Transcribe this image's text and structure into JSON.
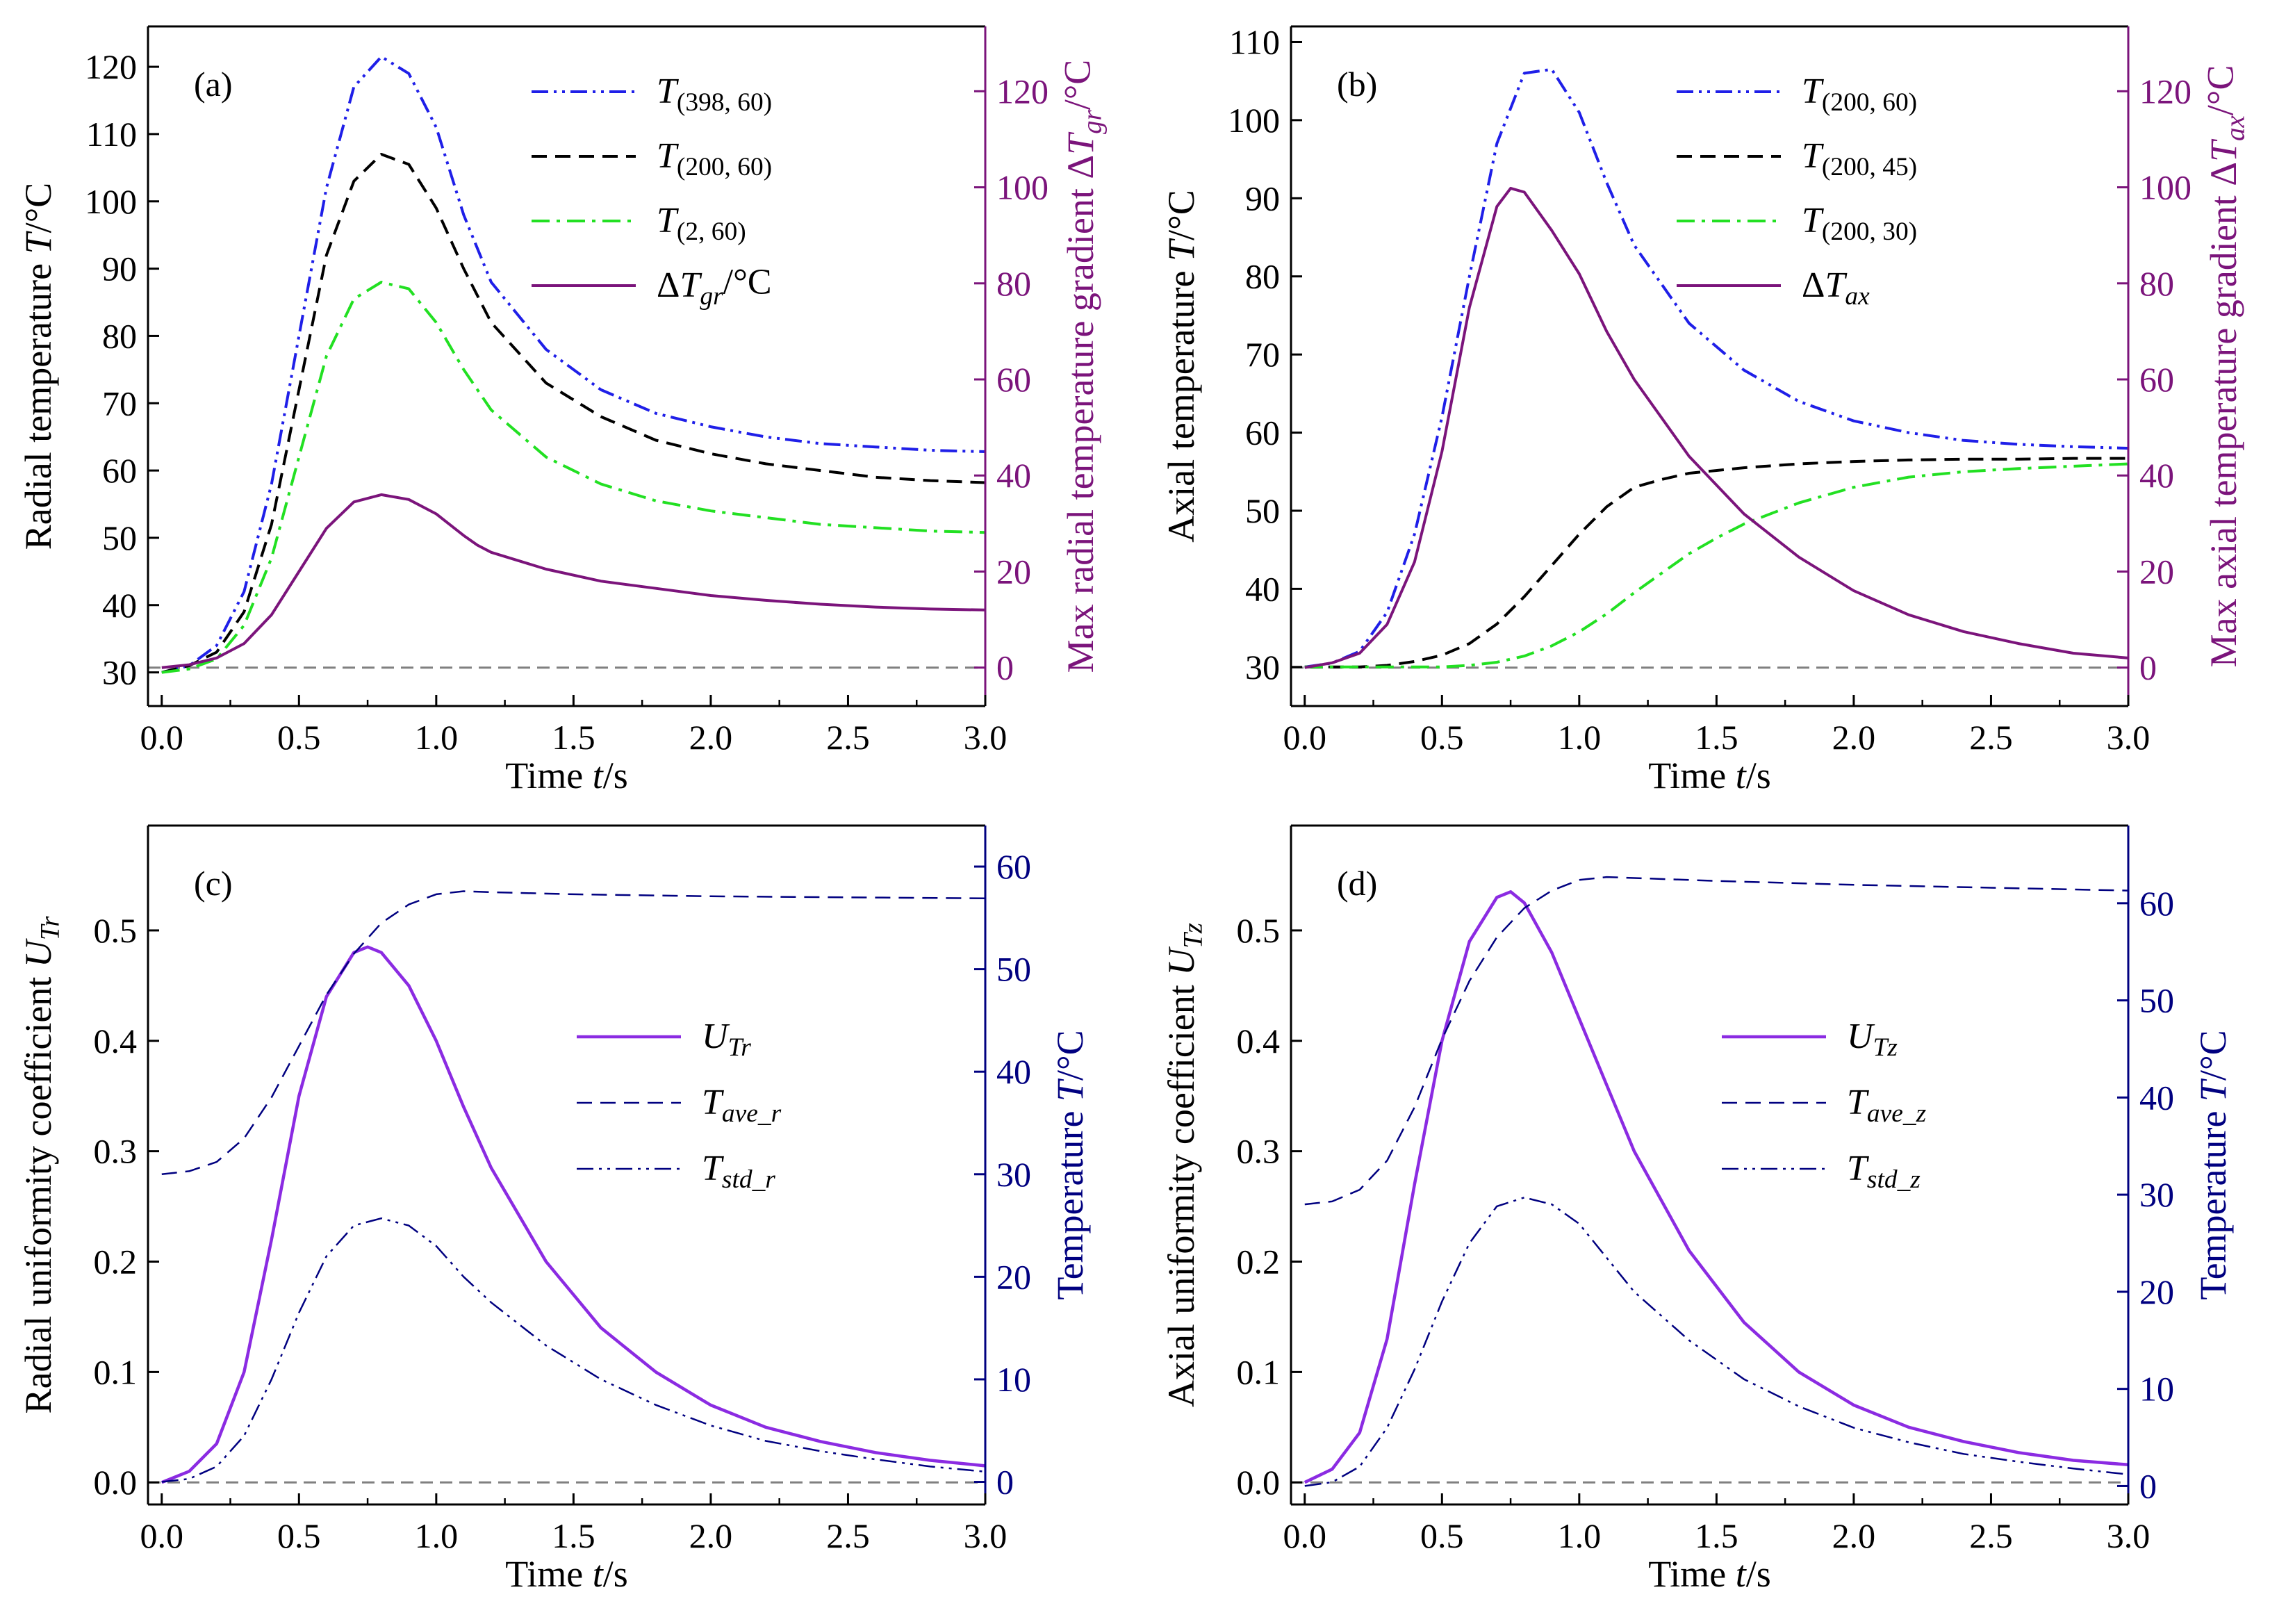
{
  "colors": {
    "blue": "#1F1FE8",
    "black": "#000000",
    "green": "#22E022",
    "purple": "#7B147B",
    "violet": "#8B2BE2",
    "navy": "#000080",
    "gray": "#808080"
  },
  "chart_data": [
    {
      "type": "line",
      "panel_label": "(a)",
      "xlabel": "Time t/s",
      "ylabel_left": "Radial temperature T/°C",
      "ylabel_right": "Max radial temperature gradient ΔTgr/°C",
      "xlim": [
        -0.05,
        3.0
      ],
      "ylim_left": [
        25,
        126
      ],
      "ylim_right": [
        -8,
        133.5
      ],
      "xticks": [
        0.0,
        0.5,
        1.0,
        1.5,
        2.0,
        2.5,
        3.0
      ],
      "xtick_labels": [
        "0.0",
        "0.5",
        "1.0",
        "1.5",
        "2.0",
        "2.5",
        "3.0"
      ],
      "yticks_left": [
        30,
        40,
        50,
        60,
        70,
        80,
        90,
        100,
        110,
        120
      ],
      "yticks_left_labels": [
        "30",
        "40",
        "50",
        "60",
        "70",
        "80",
        "90",
        "100",
        "110",
        "120"
      ],
      "yticks_right": [
        0,
        20,
        40,
        60,
        80,
        100,
        120
      ],
      "yticks_right_labels": [
        "0",
        "20",
        "40",
        "60",
        "80",
        "100",
        "120"
      ],
      "legend_position": "top-right",
      "baseline": {
        "axis": "right",
        "value": 0
      },
      "series": [
        {
          "name": "T(398, 60)",
          "axis": "left",
          "color": "blue",
          "dash": "dashdotdot",
          "x": [
            0,
            0.1,
            0.2,
            0.3,
            0.4,
            0.5,
            0.6,
            0.7,
            0.8,
            0.9,
            1.0,
            1.1,
            1.2,
            1.4,
            1.6,
            1.8,
            2.0,
            2.2,
            2.4,
            2.6,
            2.8,
            3.0
          ],
          "y": [
            30,
            31,
            34,
            42,
            58,
            80,
            102,
            117,
            121.5,
            119,
            111,
            98,
            88,
            78,
            72,
            68.5,
            66.5,
            65,
            64,
            63.5,
            63,
            62.8
          ]
        },
        {
          "name": "T(200, 60)",
          "axis": "left",
          "color": "black",
          "dash": "dash",
          "x": [
            0,
            0.1,
            0.2,
            0.3,
            0.4,
            0.5,
            0.6,
            0.7,
            0.8,
            0.9,
            1.0,
            1.1,
            1.2,
            1.4,
            1.6,
            1.8,
            2.0,
            2.2,
            2.4,
            2.6,
            2.8,
            3.0
          ],
          "y": [
            30,
            31,
            33,
            39,
            52,
            72,
            92,
            103,
            107,
            105.5,
            99,
            90,
            82,
            73,
            68,
            64.5,
            62.5,
            61,
            60,
            59,
            58.5,
            58.2
          ]
        },
        {
          "name": "T(2, 60)",
          "axis": "left",
          "color": "green",
          "dash": "dashdot",
          "x": [
            0,
            0.1,
            0.2,
            0.3,
            0.4,
            0.5,
            0.6,
            0.7,
            0.8,
            0.9,
            1.0,
            1.1,
            1.2,
            1.4,
            1.6,
            1.8,
            2.0,
            2.2,
            2.4,
            2.6,
            2.8,
            3.0
          ],
          "y": [
            30,
            30.5,
            32,
            37,
            47,
            62,
            77,
            85.5,
            88,
            87,
            82,
            75,
            69,
            62,
            58,
            55.5,
            54,
            53,
            52,
            51.5,
            51,
            50.8
          ]
        },
        {
          "name": "ΔTgr/°C",
          "axis": "right",
          "color": "purple",
          "dash": "solid",
          "x": [
            0,
            0.1,
            0.2,
            0.3,
            0.4,
            0.5,
            0.6,
            0.7,
            0.8,
            0.9,
            1.0,
            1.1,
            1.15,
            1.2,
            1.4,
            1.6,
            1.8,
            2.0,
            2.2,
            2.4,
            2.6,
            2.8,
            3.0
          ],
          "y": [
            0,
            0.6,
            2,
            5,
            11,
            20,
            29,
            34.5,
            36,
            35,
            32,
            27.5,
            25.5,
            24,
            20.5,
            18,
            16.5,
            15,
            14,
            13.2,
            12.6,
            12.2,
            12
          ]
        }
      ],
      "legend": [
        {
          "series": 0,
          "label": "T",
          "sub": "(398, 60)"
        },
        {
          "series": 1,
          "label": "T",
          "sub": "(200, 60)"
        },
        {
          "series": 2,
          "label": "T",
          "sub": "(2, 60)"
        },
        {
          "series": 3,
          "label": "ΔT",
          "sub": "gr",
          "suffix": "/°C"
        }
      ]
    },
    {
      "type": "line",
      "panel_label": "(b)",
      "xlabel": "Time t/s",
      "ylabel_left": "Axial temperature T/°C",
      "ylabel_right": "Max axial temperature gradient ΔTax/°C",
      "xlim": [
        -0.05,
        3.0
      ],
      "ylim_left": [
        25,
        112
      ],
      "ylim_right": [
        -8,
        133.5
      ],
      "xticks": [
        0.0,
        0.5,
        1.0,
        1.5,
        2.0,
        2.5,
        3.0
      ],
      "xtick_labels": [
        "0.0",
        "0.5",
        "1.0",
        "1.5",
        "2.0",
        "2.5",
        "3.0"
      ],
      "yticks_left": [
        30,
        40,
        50,
        60,
        70,
        80,
        90,
        100,
        110
      ],
      "yticks_left_labels": [
        "30",
        "40",
        "50",
        "60",
        "70",
        "80",
        "90",
        "100",
        "110"
      ],
      "yticks_right": [
        0,
        20,
        40,
        60,
        80,
        100,
        120
      ],
      "yticks_right_labels": [
        "0",
        "20",
        "40",
        "60",
        "80",
        "100",
        "120"
      ],
      "legend_position": "top-right",
      "baseline": {
        "axis": "right",
        "value": 0
      },
      "series": [
        {
          "name": "T(200, 60)",
          "axis": "left",
          "color": "blue",
          "dash": "dashdotdot",
          "x": [
            0,
            0.1,
            0.2,
            0.3,
            0.4,
            0.5,
            0.6,
            0.7,
            0.8,
            0.9,
            1.0,
            1.1,
            1.2,
            1.4,
            1.6,
            1.8,
            2.0,
            2.2,
            2.4,
            2.6,
            2.8,
            3.0
          ],
          "y": [
            30,
            30.5,
            32,
            37,
            47,
            62,
            80,
            97,
            106,
            106.5,
            101,
            92,
            84,
            74,
            68,
            64,
            61.5,
            60,
            59,
            58.5,
            58.2,
            58
          ]
        },
        {
          "name": "T(200, 45)",
          "axis": "left",
          "color": "black",
          "dash": "dash",
          "x": [
            0,
            0.2,
            0.3,
            0.4,
            0.5,
            0.6,
            0.7,
            0.8,
            0.9,
            1.0,
            1.1,
            1.2,
            1.3,
            1.4,
            1.6,
            1.8,
            2.0,
            2.2,
            2.4,
            2.6,
            2.8,
            3.0
          ],
          "y": [
            30,
            30,
            30.2,
            30.7,
            31.5,
            33,
            35.5,
            39,
            43,
            47,
            50.5,
            53,
            54,
            54.8,
            55.5,
            56,
            56.3,
            56.5,
            56.6,
            56.6,
            56.7,
            56.7
          ]
        },
        {
          "name": "T(200, 30)",
          "axis": "left",
          "color": "green",
          "dash": "dashdot",
          "x": [
            0,
            0.5,
            0.6,
            0.7,
            0.8,
            0.9,
            1.0,
            1.1,
            1.2,
            1.3,
            1.4,
            1.5,
            1.6,
            1.8,
            2.0,
            2.2,
            2.4,
            2.6,
            2.8,
            3.0
          ],
          "y": [
            30,
            30,
            30.2,
            30.6,
            31.4,
            32.7,
            34.5,
            36.8,
            39.5,
            42,
            44.5,
            46.5,
            48.3,
            51,
            53,
            54.3,
            55,
            55.4,
            55.7,
            56
          ]
        },
        {
          "name": "ΔTax",
          "axis": "right",
          "color": "purple",
          "dash": "solid",
          "x": [
            0,
            0.1,
            0.2,
            0.3,
            0.4,
            0.5,
            0.6,
            0.7,
            0.75,
            0.8,
            0.9,
            1.0,
            1.1,
            1.2,
            1.4,
            1.6,
            1.8,
            2.0,
            2.2,
            2.4,
            2.6,
            2.8,
            3.0
          ],
          "y": [
            0,
            1,
            3,
            9,
            22,
            45,
            75,
            96,
            99.8,
            99,
            91,
            82,
            70,
            60,
            44,
            32,
            23,
            16,
            11,
            7.5,
            5,
            3,
            2
          ]
        }
      ],
      "legend": [
        {
          "series": 0,
          "label": "T",
          "sub": "(200, 60)"
        },
        {
          "series": 1,
          "label": "T",
          "sub": "(200, 45)"
        },
        {
          "series": 2,
          "label": "T",
          "sub": "(200, 30)"
        },
        {
          "series": 3,
          "label": "ΔT",
          "sub": "ax",
          "suffix": ""
        }
      ]
    },
    {
      "type": "line",
      "panel_label": "(c)",
      "xlabel": "Time t/s",
      "ylabel_left": "Radial uniformity coefficient UTr",
      "ylabel_right": "Temperature T/°C",
      "xlim": [
        -0.05,
        3.0
      ],
      "ylim_left": [
        -0.02,
        0.595
      ],
      "ylim_right": [
        -2.2,
        64
      ],
      "xticks": [
        0.0,
        0.5,
        1.0,
        1.5,
        2.0,
        2.5,
        3.0
      ],
      "xtick_labels": [
        "0.0",
        "0.5",
        "1.0",
        "1.5",
        "2.0",
        "2.5",
        "3.0"
      ],
      "yticks_left": [
        0.0,
        0.1,
        0.2,
        0.3,
        0.4,
        0.5
      ],
      "yticks_left_labels": [
        "0.0",
        "0.1",
        "0.2",
        "0.3",
        "0.4",
        "0.5"
      ],
      "yticks_right": [
        0,
        10,
        20,
        30,
        40,
        50,
        60
      ],
      "yticks_right_labels": [
        "0",
        "10",
        "20",
        "30",
        "40",
        "50",
        "60"
      ],
      "legend_position": "right",
      "baseline": {
        "axis": "left",
        "value": 0
      },
      "series": [
        {
          "name": "UTr",
          "axis": "left",
          "color": "violet",
          "dash": "solid",
          "width": 4.5,
          "x": [
            0,
            0.1,
            0.2,
            0.3,
            0.4,
            0.5,
            0.6,
            0.7,
            0.75,
            0.8,
            0.9,
            1.0,
            1.1,
            1.2,
            1.4,
            1.6,
            1.8,
            2.0,
            2.2,
            2.4,
            2.6,
            2.8,
            3.0
          ],
          "y": [
            0,
            0.01,
            0.035,
            0.1,
            0.22,
            0.35,
            0.44,
            0.48,
            0.485,
            0.48,
            0.45,
            0.4,
            0.34,
            0.285,
            0.2,
            0.14,
            0.1,
            0.07,
            0.05,
            0.037,
            0.027,
            0.02,
            0.015
          ]
        },
        {
          "name": "Tave_r",
          "axis": "right",
          "color": "navy",
          "dash": "dash",
          "width": 2.5,
          "x": [
            0,
            0.1,
            0.2,
            0.3,
            0.4,
            0.5,
            0.6,
            0.7,
            0.8,
            0.9,
            1.0,
            1.1,
            1.2,
            1.5,
            2.0,
            2.5,
            3.0
          ],
          "y": [
            30,
            30.3,
            31.2,
            33.5,
            37.5,
            42.5,
            47.5,
            51.5,
            54.5,
            56.3,
            57.3,
            57.6,
            57.5,
            57.3,
            57.1,
            57,
            56.9
          ]
        },
        {
          "name": "Tstd_r",
          "axis": "right",
          "color": "navy",
          "dash": "dashdotdot",
          "width": 2.5,
          "x": [
            0,
            0.1,
            0.2,
            0.3,
            0.4,
            0.5,
            0.6,
            0.7,
            0.8,
            0.9,
            1.0,
            1.1,
            1.2,
            1.4,
            1.6,
            1.8,
            2.0,
            2.2,
            2.4,
            2.6,
            2.8,
            3.0
          ],
          "y": [
            0,
            0.3,
            1.5,
            4.5,
            10,
            16.5,
            22,
            25,
            25.7,
            25,
            23,
            20,
            17.5,
            13.3,
            10,
            7.5,
            5.5,
            4,
            3,
            2.2,
            1.5,
            1
          ]
        }
      ],
      "legend": [
        {
          "series": 0,
          "label": "U",
          "sub": "Tr"
        },
        {
          "series": 1,
          "label": "T",
          "sub": "ave_r"
        },
        {
          "series": 2,
          "label": "T",
          "sub": "std_r"
        }
      ]
    },
    {
      "type": "line",
      "panel_label": "(d)",
      "xlabel": "Time t/s",
      "ylabel_left": "Axial uniformity coefficient UTz",
      "ylabel_right": "Temperature T/°C",
      "xlim": [
        -0.05,
        3.0
      ],
      "ylim_left": [
        -0.02,
        0.595
      ],
      "ylim_right": [
        -1.9,
        68
      ],
      "xticks": [
        0.0,
        0.5,
        1.0,
        1.5,
        2.0,
        2.5,
        3.0
      ],
      "xtick_labels": [
        "0.0",
        "0.5",
        "1.0",
        "1.5",
        "2.0",
        "2.5",
        "3.0"
      ],
      "yticks_left": [
        0.0,
        0.1,
        0.2,
        0.3,
        0.4,
        0.5
      ],
      "yticks_left_labels": [
        "0.0",
        "0.1",
        "0.2",
        "0.3",
        "0.4",
        "0.5"
      ],
      "yticks_right": [
        0,
        10,
        20,
        30,
        40,
        50,
        60
      ],
      "yticks_right_labels": [
        "0",
        "10",
        "20",
        "30",
        "40",
        "50",
        "60"
      ],
      "legend_position": "right",
      "baseline": {
        "axis": "left",
        "value": 0
      },
      "series": [
        {
          "name": "UTz",
          "axis": "left",
          "color": "violet",
          "dash": "solid",
          "width": 4.5,
          "x": [
            0,
            0.1,
            0.2,
            0.3,
            0.4,
            0.5,
            0.6,
            0.7,
            0.75,
            0.8,
            0.9,
            1.0,
            1.1,
            1.2,
            1.4,
            1.6,
            1.8,
            2.0,
            2.2,
            2.4,
            2.6,
            2.8,
            3.0
          ],
          "y": [
            0,
            0.012,
            0.045,
            0.13,
            0.27,
            0.4,
            0.49,
            0.53,
            0.535,
            0.525,
            0.48,
            0.42,
            0.36,
            0.3,
            0.21,
            0.145,
            0.1,
            0.07,
            0.05,
            0.037,
            0.027,
            0.02,
            0.016
          ]
        },
        {
          "name": "Tave_z",
          "axis": "right",
          "color": "navy",
          "dash": "dash",
          "width": 2.5,
          "x": [
            0,
            0.1,
            0.2,
            0.3,
            0.4,
            0.5,
            0.6,
            0.7,
            0.8,
            0.9,
            1.0,
            1.1,
            1.2,
            1.5,
            2.0,
            2.5,
            3.0
          ],
          "y": [
            29,
            29.3,
            30.5,
            33.5,
            39,
            46,
            52,
            56.5,
            59.5,
            61.3,
            62.4,
            62.7,
            62.6,
            62.3,
            61.9,
            61.6,
            61.3
          ]
        },
        {
          "name": "Tstd_z",
          "axis": "right",
          "color": "navy",
          "dash": "dashdotdot",
          "width": 2.5,
          "x": [
            0,
            0.1,
            0.2,
            0.3,
            0.4,
            0.5,
            0.6,
            0.7,
            0.8,
            0.9,
            1.0,
            1.1,
            1.2,
            1.4,
            1.6,
            1.8,
            2.0,
            2.2,
            2.4,
            2.6,
            2.8,
            3.0
          ],
          "y": [
            0,
            0.4,
            2,
            6,
            12,
            19,
            25,
            28.8,
            29.7,
            29,
            27,
            23.5,
            20,
            15,
            11,
            8.2,
            6,
            4.5,
            3.3,
            2.5,
            1.8,
            1.2
          ]
        }
      ],
      "legend": [
        {
          "series": 0,
          "label": "U",
          "sub": "Tz"
        },
        {
          "series": 1,
          "label": "T",
          "sub": "ave_z"
        },
        {
          "series": 2,
          "label": "T",
          "sub": "std_z"
        }
      ]
    }
  ]
}
